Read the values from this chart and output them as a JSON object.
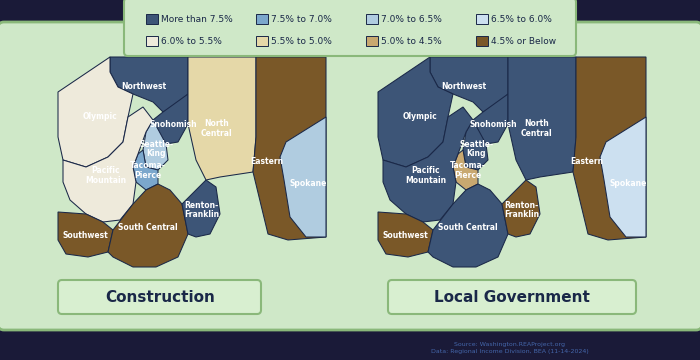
{
  "legend_items": [
    {
      "label": "More than 7.5%",
      "color": "#3d5577"
    },
    {
      "label": "7.5% to 7.0%",
      "color": "#7ba7cc"
    },
    {
      "label": "7.0% to 6.5%",
      "color": "#b0cce0"
    },
    {
      "label": "6.5% to 6.0%",
      "color": "#cce0f0"
    },
    {
      "label": "6.0% to 5.5%",
      "color": "#eeeadb"
    },
    {
      "label": "5.5% to 5.0%",
      "color": "#e5d8a8"
    },
    {
      "label": "5.0% to 4.5%",
      "color": "#c8a870"
    },
    {
      "label": "4.5% or Below",
      "color": "#7a5828"
    }
  ],
  "construction_regions": {
    "Northwest": "#3d5577",
    "Snohomish": "#3d5577",
    "Olympic": "#eeeadb",
    "Seattle-King": "#b0cce0",
    "Tacoma-Pierce": "#7ba7cc",
    "Pacific Mountain": "#eeeadb",
    "Southwest": "#7a5828",
    "South Central": "#7a5828",
    "Renton-Franklin": "#3d5577",
    "North Central": "#e5d8a8",
    "Eastern": "#7a5828",
    "Spokane": "#b0cce0"
  },
  "local_gov_regions": {
    "Northwest": "#3d5577",
    "Snohomish": "#3d5577",
    "Olympic": "#3d5577",
    "Seattle-King": "#3d5577",
    "Tacoma-Pierce": "#c8a870",
    "Pacific Mountain": "#3d5577",
    "Southwest": "#7a5828",
    "South Central": "#3d5577",
    "Renton-Franklin": "#7a5828",
    "North Central": "#3d5577",
    "Eastern": "#7a5828",
    "Spokane": "#cce0f0"
  },
  "background_color": "#cfe8c8",
  "panel_border_color": "#8ab87a",
  "region_border_color": "#1a2848",
  "label_color": "#ffffff",
  "dark_bg": "#1a1a38",
  "source_text": "Source: Washington.REAProject.org\nData: Regional Income Division, BEA (11-14-2024)",
  "construction_label": "Construction",
  "local_gov_label": "Local Government",
  "label_box_color": "#d8efd0",
  "title_color": "#1a2848"
}
